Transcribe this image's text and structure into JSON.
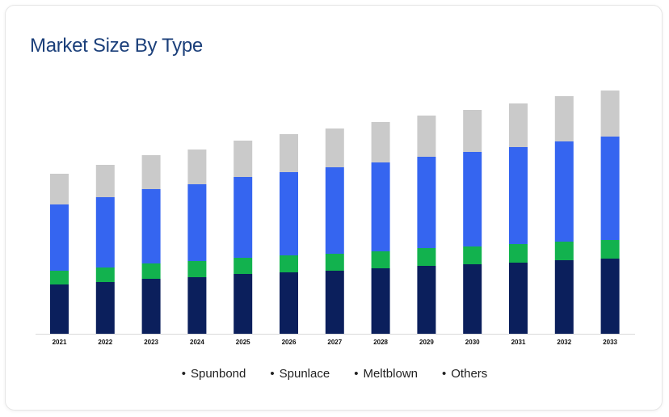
{
  "header": {
    "title": "Market Size By Type"
  },
  "colors": {
    "Spunbond": "#0b1f5c",
    "Spunlace": "#12b24e",
    "Meltblown": "#3565f0",
    "Others": "#cacaca",
    "axis": "#d9d9d9"
  },
  "legend": {
    "bullet": "•",
    "items": [
      "Spunbond",
      "Spunlace",
      "Meltblown",
      "Others"
    ]
  },
  "chart_data": {
    "type": "bar",
    "stacked": true,
    "title": "Market Size By Type",
    "xlabel": "",
    "ylabel": "",
    "y_axis_visible": false,
    "grid": false,
    "legend_position": "bottom",
    "ylim": [
      0,
      300
    ],
    "categories": [
      "2021",
      "2022",
      "2023",
      "2024",
      "2025",
      "2026",
      "2027",
      "2028",
      "2029",
      "2030",
      "2031",
      "2032",
      "2033"
    ],
    "series": [
      {
        "name": "Spunbond",
        "values": [
          61,
          64,
          68,
          70,
          74,
          76,
          78,
          81,
          84,
          86,
          88,
          91,
          93
        ]
      },
      {
        "name": "Spunlace",
        "values": [
          17,
          18,
          19,
          20,
          20,
          21,
          21,
          21,
          22,
          22,
          23,
          23,
          23
        ]
      },
      {
        "name": "Meltblown",
        "values": [
          82,
          87,
          92,
          95,
          100,
          103,
          107,
          110,
          113,
          117,
          120,
          124,
          128
        ]
      },
      {
        "name": "Others",
        "values": [
          38,
          40,
          42,
          43,
          45,
          47,
          48,
          50,
          51,
          52,
          54,
          56,
          57
        ]
      }
    ]
  }
}
